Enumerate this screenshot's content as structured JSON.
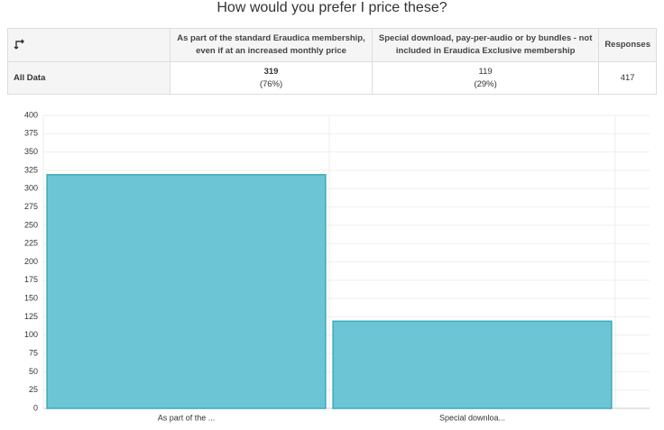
{
  "title": "How would you prefer I price these?",
  "table": {
    "columns": [
      "As part of the standard Eraudica membership, even if at an increased monthly price",
      "Special download, pay-per-audio or by bundles - not included in Eraudica Exclusive membership",
      "Responses"
    ],
    "rows": [
      {
        "label": "All Data",
        "cells": [
          {
            "count": "319",
            "percent": "(76%)"
          },
          {
            "count": "119",
            "percent": "(29%)"
          }
        ],
        "responses": "417"
      }
    ]
  },
  "chart_data": {
    "type": "bar",
    "categories": [
      "As part of the ...",
      "Special downloa..."
    ],
    "values": [
      319,
      119
    ],
    "color": "#6cc5d5",
    "edge_color": "#3aabb9",
    "ylim": [
      0,
      400
    ],
    "yticks": [
      0,
      25,
      50,
      75,
      100,
      125,
      150,
      175,
      200,
      225,
      250,
      275,
      300,
      325,
      350,
      375,
      400
    ],
    "grid": true
  }
}
